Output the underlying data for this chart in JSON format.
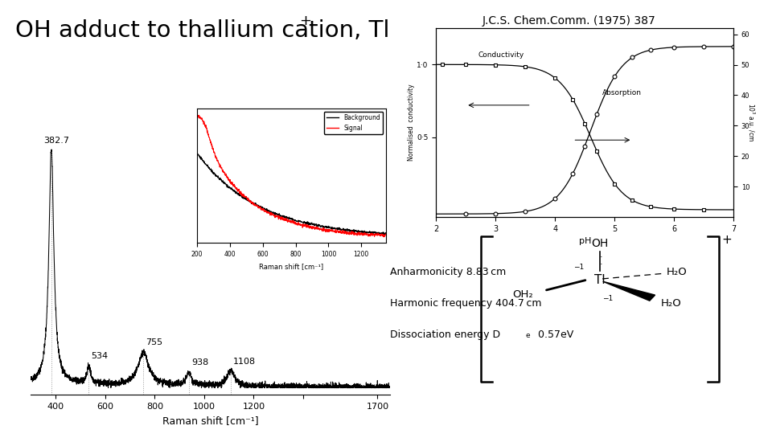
{
  "title": "OH adduct to thallium cation, Tl",
  "title_plus": "+",
  "reference": "J.C.S. Chem.Comm. (1975) 387",
  "bg_color": "#ffffff",
  "peak_labels": [
    "382.7",
    "534",
    "755",
    "938",
    "1108"
  ],
  "peak_positions": [
    382.7,
    534,
    755,
    938,
    1108
  ],
  "xmin": 300,
  "xmax": 1750,
  "raman_xlabel": "Raman shift [cm⁻¹]",
  "inset_xlabel": "Raman shift [cm⁻¹]",
  "line1": "Anharmonicity 8.83 cm",
  "line2": "Harmonic frequency 404.7 cm",
  "line3": "Dissociation energy D",
  "line3end": " 0.57eV"
}
